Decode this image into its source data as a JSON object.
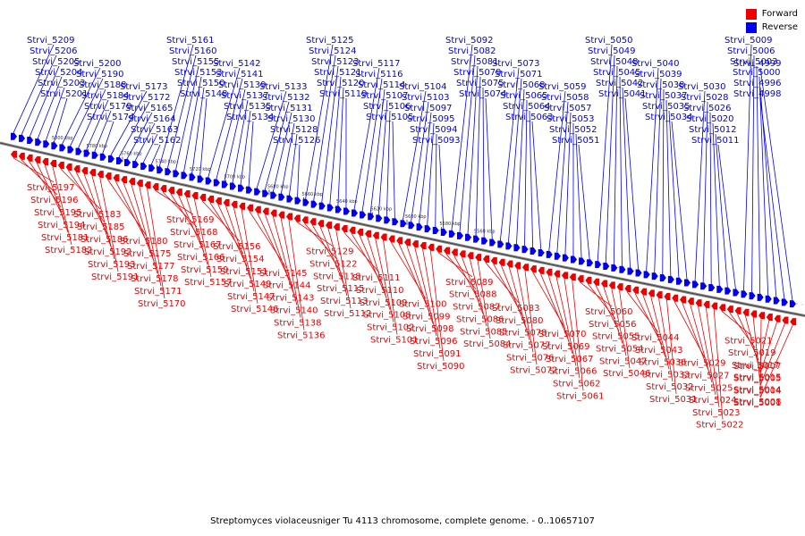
{
  "legend": {
    "forward_label": "Forward",
    "reverse_label": "Reverse",
    "forward_color": "#ee0000",
    "reverse_color": "#0000ee"
  },
  "caption": "Streptomyces violaceusniger Tu 4113 chromosome, complete genome. - 0..10657107",
  "ruler_ticks": [
    "5800 kbp",
    "5780 kbp",
    "5760 kbp",
    "5740 kbp",
    "5720 kbp",
    "5700 kbp",
    "5680 kbp",
    "5660 kbp",
    "5640 kbp",
    "5620 kbp",
    "5600 kbp",
    "5580 kbp",
    "5560 kbp"
  ],
  "reverse_genes": [
    "Strvi_5209",
    "Strvi_5206",
    "Strvi_5205",
    "Strvi_5204",
    "Strvi_5203",
    "Strvi_5201",
    "Strvi_5200",
    "Strvi_5190",
    "Strvi_5188",
    "Strvi_5184",
    "Strvi_5179",
    "Strvi_5174",
    "Strvi_5173",
    "Strvi_5172",
    "Strvi_5165",
    "Strvi_5164",
    "Strvi_5163",
    "Strvi_5162",
    "Strvi_5161",
    "Strvi_5160",
    "Strvi_5155",
    "Strvi_5153",
    "Strvi_5150",
    "Strvi_5148",
    "Strvi_5142",
    "Strvi_5141",
    "Strvi_5139",
    "Strvi_5137",
    "Strvi_5135",
    "Strvi_5134",
    "Strvi_5133",
    "Strvi_5132",
    "Strvi_5131",
    "Strvi_5130",
    "Strvi_5128",
    "Strvi_5126",
    "Strvi_5125",
    "Strvi_5124",
    "Strvi_5123",
    "Strvi_5121",
    "Strvi_5120",
    "Strvi_5119",
    "Strvi_5117",
    "Strvi_5116",
    "Strvi_5114",
    "Strvi_5107",
    "Strvi_5106",
    "Strvi_5105",
    "Strvi_5104",
    "Strvi_5103",
    "Strvi_5097",
    "Strvi_5095",
    "Strvi_5094",
    "Strvi_5093",
    "Strvi_5092",
    "Strvi_5082",
    "Strvi_5081",
    "Strvi_5079",
    "Strvi_5075",
    "Strvi_5074",
    "Strvi_5073",
    "Strvi_5071",
    "Strvi_5068",
    "Strvi_5065",
    "Strvi_5064",
    "Strvi_5063",
    "Strvi_5059",
    "Strvi_5058",
    "Strvi_5057",
    "Strvi_5053",
    "Strvi_5052",
    "Strvi_5051",
    "Strvi_5050",
    "Strvi_5049",
    "Strvi_5048",
    "Strvi_5045",
    "Strvi_5042",
    "Strvi_5041",
    "Strvi_5040",
    "Strvi_5039",
    "Strvi_5038",
    "Strvi_5037",
    "Strvi_5035",
    "Strvi_5034",
    "Strvi_5030",
    "Strvi_5028",
    "Strvi_5026",
    "Strvi_5020",
    "Strvi_5012",
    "Strvi_5011",
    "Strvi_5009",
    "Strvi_5006",
    "Strvi_5003",
    "Strvi_5000",
    "Strvi_4996",
    "Strvi_4998",
    "Strvi_4999"
  ],
  "forward_genes": [
    "Strvi_5197",
    "Strvi_5196",
    "Strvi_5195",
    "Strvi_5194",
    "Strvi_5181",
    "Strvi_5182",
    "Strvi_5183",
    "Strvi_5185",
    "Strvi_5186",
    "Strvi_5192",
    "Strvi_5193",
    "Strvi_5191",
    "Strvi_5180",
    "Strvi_5175",
    "Strvi_5177",
    "Strvi_5178",
    "Strvi_5171",
    "Strvi_5170",
    "Strvi_5169",
    "Strvi_5168",
    "Strvi_5167",
    "Strvi_5166",
    "Strvi_5159",
    "Strvi_5157",
    "Strvi_5156",
    "Strvi_5154",
    "Strvi_5151",
    "Strvi_5149",
    "Strvi_5147",
    "Strvi_5146",
    "Strvi_5145",
    "Strvi_5144",
    "Strvi_5143",
    "Strvi_5140",
    "Strvi_5138",
    "Strvi_5136",
    "Strvi_5129",
    "Strvi_5122",
    "Strvi_5118",
    "Strvi_5115",
    "Strvi_5113",
    "Strvi_5112",
    "Strvi_5111",
    "Strvi_5110",
    "Strvi_5109",
    "Strvi_5108",
    "Strvi_5102",
    "Strvi_5101",
    "Strvi_5100",
    "Strvi_5099",
    "Strvi_5098",
    "Strvi_5096",
    "Strvi_5091",
    "Strvi_5090",
    "Strvi_5089",
    "Strvi_5088",
    "Strvi_5087",
    "Strvi_5086",
    "Strvi_5085",
    "Strvi_5084",
    "Strvi_5083",
    "Strvi_5080",
    "Strvi_5078",
    "Strvi_5077",
    "Strvi_5076",
    "Strvi_5072",
    "Strvi_5070",
    "Strvi_5069",
    "Strvi_5067",
    "Strvi_5066",
    "Strvi_5062",
    "Strvi_5061",
    "Strvi_5060",
    "Strvi_5056",
    "Strvi_5055",
    "Strvi_5054",
    "Strvi_5047",
    "Strvi_5046",
    "Strvi_5044",
    "Strvi_5043",
    "Strvi_5036",
    "Strvi_5033",
    "Strvi_5032",
    "Strvi_5031",
    "Strvi_5029",
    "Strvi_5027",
    "Strvi_5025",
    "Strvi_5024",
    "Strvi_5023",
    "Strvi_5022",
    "Strvi_5021",
    "Strvi_5019",
    "Strvi_5017",
    "Strvi_5015",
    "Strvi_5014",
    "Strvi_5008",
    "Strvi_5007",
    "Strvi_5005",
    "Strvi_5004",
    "Strvi_5001"
  ]
}
